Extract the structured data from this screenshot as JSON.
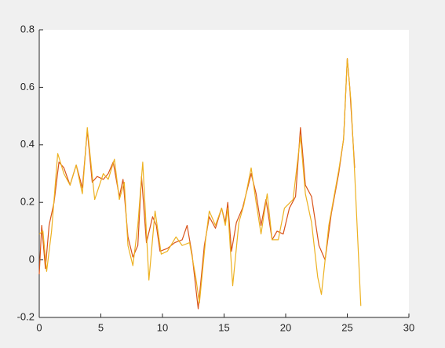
{
  "chart_data": {
    "type": "line",
    "xlim": [
      0,
      30
    ],
    "ylim": [
      -0.2,
      0.8
    ],
    "xticks": [
      0,
      5,
      10,
      15,
      20,
      25,
      30
    ],
    "yticks": [
      -0.2,
      0,
      0.2,
      0.4,
      0.6,
      0.8
    ],
    "grid": false,
    "series": [
      {
        "color": "#d95319",
        "x": [
          0,
          0.2,
          0.5,
          0.8,
          1.2,
          1.6,
          2,
          2.5,
          3,
          3.5,
          3.9,
          4.3,
          4.7,
          5.2,
          5.6,
          6,
          6.5,
          6.8,
          7.2,
          7.6,
          8,
          8.3,
          8.7,
          9.2,
          9.5,
          9.8,
          10.4,
          11,
          11.6,
          12,
          12.4,
          12.9,
          13.4,
          13.8,
          14.3,
          14.8,
          15.1,
          15.3,
          15.6,
          16,
          16.5,
          17.2,
          17.6,
          18,
          18.4,
          18.9,
          19.3,
          19.8,
          20.3,
          20.8,
          21.2,
          21.6,
          22.1,
          22.7,
          23.2,
          23.7,
          24.3,
          24.7,
          25,
          25.2,
          25.6
        ],
        "values": [
          -0.05,
          0.12,
          -0.03,
          0.12,
          0.2,
          0.34,
          0.32,
          0.26,
          0.33,
          0.25,
          0.45,
          0.27,
          0.29,
          0.28,
          0.3,
          0.34,
          0.22,
          0.28,
          0.08,
          0.01,
          0.05,
          0.29,
          0.06,
          0.15,
          0.12,
          0.03,
          0.04,
          0.06,
          0.07,
          0.12,
          0.02,
          -0.17,
          0.05,
          0.15,
          0.11,
          0.18,
          0.13,
          0.2,
          0.03,
          0.13,
          0.18,
          0.3,
          0.23,
          0.12,
          0.21,
          0.07,
          0.1,
          0.09,
          0.18,
          0.22,
          0.46,
          0.26,
          0.22,
          0.05,
          0.0,
          0.16,
          0.3,
          0.42,
          0.7,
          0.6,
          0.32
        ]
      },
      {
        "color": "#edb120",
        "x": [
          0,
          0.3,
          0.6,
          1,
          1.5,
          2,
          2.5,
          3,
          3.5,
          3.9,
          4.5,
          5.2,
          5.6,
          6.1,
          6.5,
          6.9,
          7.2,
          7.6,
          8,
          8.4,
          8.9,
          9.4,
          9.9,
          10.4,
          11.1,
          11.6,
          12.2,
          12.7,
          13,
          13.5,
          13.8,
          14.3,
          14.8,
          15.1,
          15.3,
          15.7,
          16.2,
          16.6,
          17.2,
          17.6,
          18,
          18.5,
          18.9,
          19.4,
          19.9,
          20.6,
          21.2,
          21.6,
          22.1,
          22.6,
          22.9,
          23.5,
          24.3,
          24.7,
          25,
          25.3,
          25.6,
          26.1
        ],
        "values": [
          0.09,
          0.1,
          -0.04,
          0.1,
          0.37,
          0.3,
          0.26,
          0.33,
          0.23,
          0.46,
          0.21,
          0.3,
          0.28,
          0.35,
          0.21,
          0.27,
          0.05,
          -0.02,
          0.12,
          0.34,
          -0.07,
          0.17,
          0.02,
          0.03,
          0.08,
          0.05,
          0.06,
          -0.06,
          -0.15,
          0.07,
          0.17,
          0.12,
          0.18,
          0.12,
          0.18,
          -0.09,
          0.13,
          0.19,
          0.32,
          0.2,
          0.09,
          0.23,
          0.07,
          0.07,
          0.18,
          0.21,
          0.43,
          0.23,
          0.13,
          -0.06,
          -0.12,
          0.12,
          0.31,
          0.42,
          0.7,
          0.55,
          0.3,
          -0.16
        ]
      }
    ]
  }
}
